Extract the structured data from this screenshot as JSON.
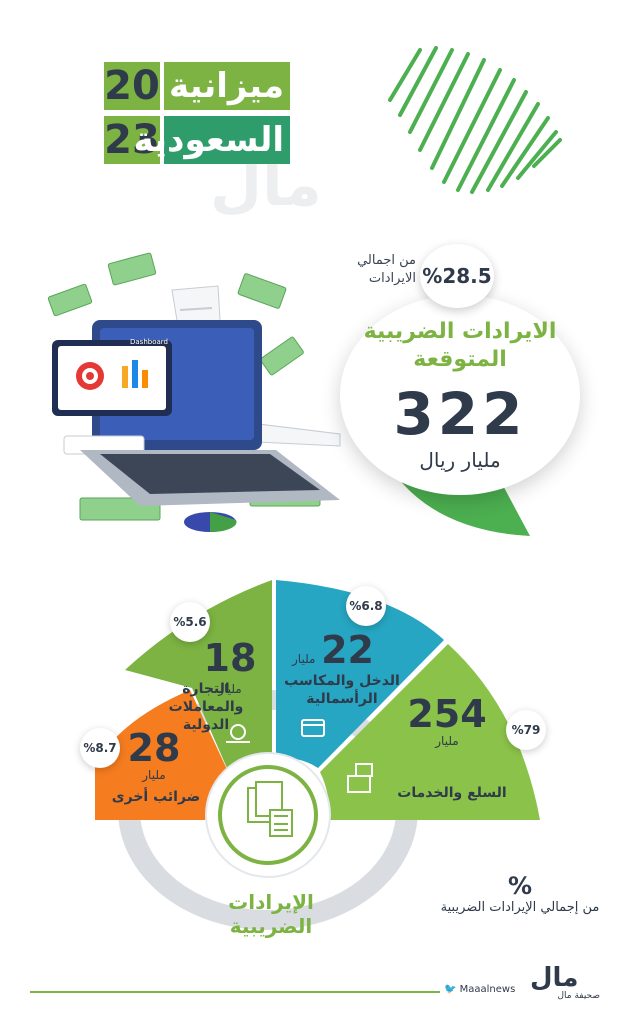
{
  "header": {
    "year_top": "20",
    "year_bottom": "23",
    "title_line1": "ميزانية",
    "title_line2": "السعودية"
  },
  "watermark": "مال",
  "revenue": {
    "share_pct": "%28.5",
    "share_label": "من اجمالي الايرادات",
    "title": "الايرادات الضريبية المتوقعة",
    "value": "322",
    "unit": "مليار ريال"
  },
  "illustration": {
    "dashboard_label": "Dashboard"
  },
  "segments": [
    {
      "value": "254",
      "unit": "مليار",
      "label": "السلع والخدمات",
      "pct": "%79",
      "color": "#8bc34a",
      "icon": "boxes-icon"
    },
    {
      "value": "22",
      "unit": "مليار",
      "label": "الدخل والمكاسب الرأسمالية",
      "pct": "%6.8",
      "color": "#26a6c2",
      "icon": "wallet-icon"
    },
    {
      "value": "18",
      "unit": "مليار",
      "label": "التجارة والمعاملات الدولية",
      "pct": "%5.6",
      "color": "#7cb342",
      "icon": "trade-icon"
    },
    {
      "value": "28",
      "unit": "مليار",
      "label": "ضرائب أخرى",
      "pct": "%8.7",
      "color": "#f57c1f",
      "icon": ""
    }
  ],
  "center": {
    "label": "الإيرادات الضريبية",
    "icon": "document-calculator-icon"
  },
  "legend": {
    "symbol": "%",
    "text": "من إجمالي الإيرادات الضريبية"
  },
  "footer": {
    "twitter": "Maaalnews",
    "logo_mark": "مال",
    "logo_sub": "صحيفة مال"
  }
}
